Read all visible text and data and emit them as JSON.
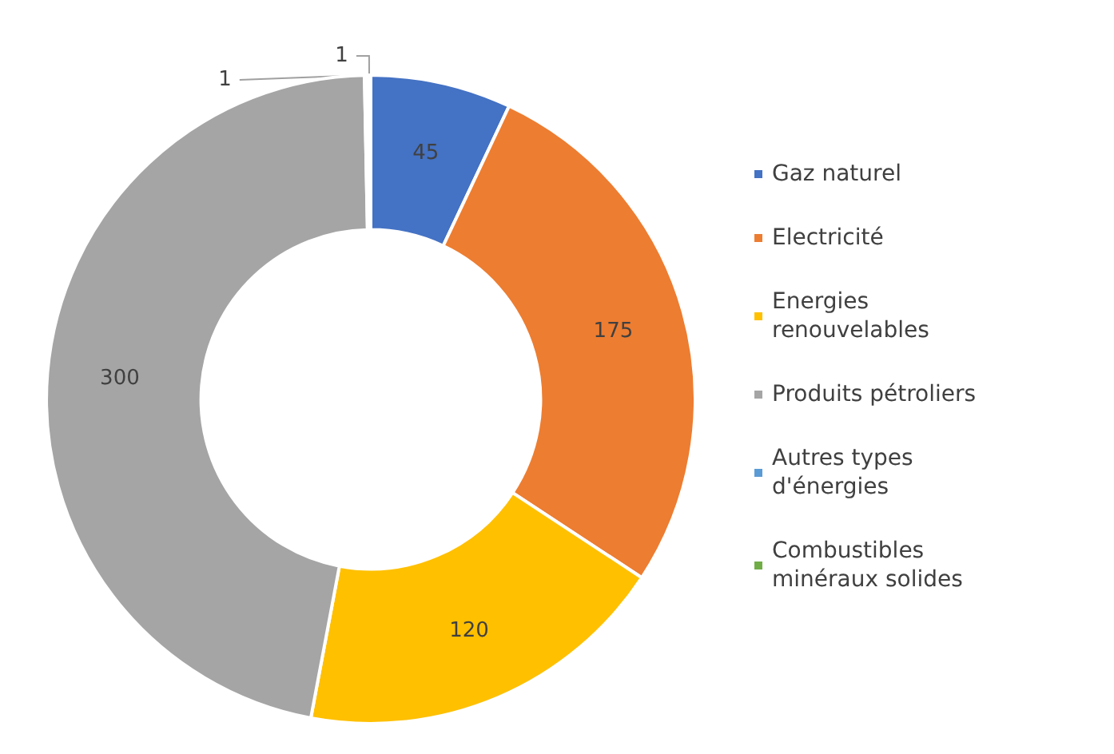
{
  "chart_data": {
    "type": "donut",
    "categories": [
      "Gaz naturel",
      "Electricité",
      "Energies renouvelables",
      "Produits pétroliers",
      "Autres types d'énergies",
      "Combustibles minéraux solides"
    ],
    "values": [
      45,
      175,
      120,
      300,
      1,
      1
    ],
    "colors": [
      "#4472c4",
      "#ed7d31",
      "#ffc000",
      "#a5a5a5",
      "#5b9bd5",
      "#70ad47"
    ],
    "data_labels": true,
    "legend": "right"
  }
}
